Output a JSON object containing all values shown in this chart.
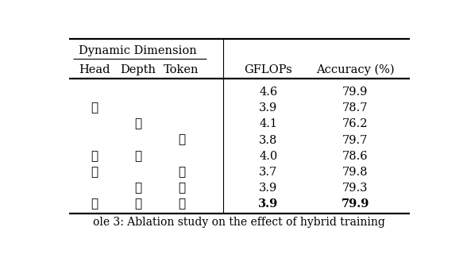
{
  "header_top": "Dynamic Dimension",
  "col_headers": [
    "Head",
    "Depth",
    "Token",
    "GFLOPs",
    "Accuracy (%)"
  ],
  "rows": [
    [
      false,
      false,
      false,
      "4.6",
      "79.9",
      false
    ],
    [
      true,
      false,
      false,
      "3.9",
      "78.7",
      false
    ],
    [
      false,
      true,
      false,
      "4.1",
      "76.2",
      false
    ],
    [
      false,
      false,
      true,
      "3.8",
      "79.7",
      false
    ],
    [
      true,
      true,
      false,
      "4.0",
      "78.6",
      false
    ],
    [
      true,
      false,
      true,
      "3.7",
      "79.8",
      false
    ],
    [
      false,
      true,
      true,
      "3.9",
      "79.3",
      false
    ],
    [
      true,
      true,
      true,
      "3.9",
      "79.9",
      true
    ]
  ],
  "figsize": [
    5.88,
    3.2
  ],
  "dpi": 100,
  "bg_color": "#ffffff",
  "text_color": "#000000",
  "font_size": 10.5,
  "caption_text": "ole 3: Ablation study on the effect of hybrid training",
  "caption_fontsize": 10.0
}
